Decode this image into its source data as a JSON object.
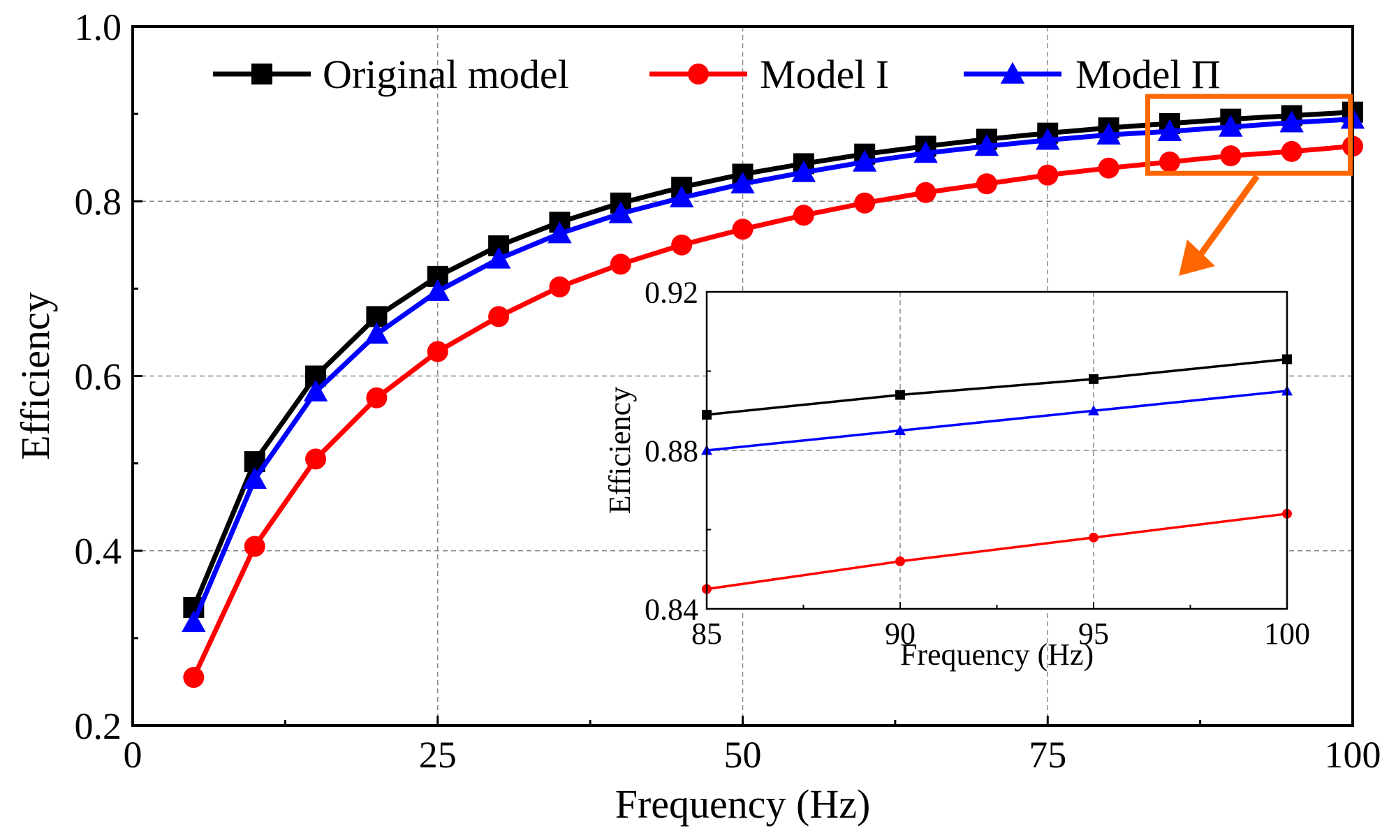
{
  "chart_data": [
    {
      "type": "line",
      "xlabel": "Frequency (Hz)",
      "ylabel": "Efficiency",
      "xlim": [
        0,
        100
      ],
      "ylim": [
        0.2,
        1.0
      ],
      "xticks": [
        0,
        25,
        50,
        75,
        100
      ],
      "xtick_labels": [
        "0",
        "25",
        "50",
        "75",
        "100"
      ],
      "yticks": [
        0.2,
        0.4,
        0.6,
        0.8,
        1.0
      ],
      "ytick_labels": [
        "0.2",
        "0.4",
        "0.6",
        "0.8",
        "1.0"
      ],
      "grid": true,
      "legend_position": "top",
      "x": [
        5,
        10,
        15,
        20,
        25,
        30,
        35,
        40,
        45,
        50,
        55,
        60,
        65,
        70,
        75,
        80,
        85,
        90,
        95,
        100
      ],
      "series": [
        {
          "name": "Original model",
          "color": "#000000",
          "marker": "square",
          "values": [
            0.335,
            0.502,
            0.6,
            0.668,
            0.714,
            0.749,
            0.776,
            0.798,
            0.816,
            0.831,
            0.843,
            0.854,
            0.863,
            0.871,
            0.878,
            0.884,
            0.889,
            0.894,
            0.898,
            0.902
          ]
        },
        {
          "name": "Model I",
          "color": "#ff0000",
          "marker": "circle",
          "values": [
            0.255,
            0.405,
            0.505,
            0.575,
            0.628,
            0.668,
            0.702,
            0.728,
            0.75,
            0.768,
            0.784,
            0.798,
            0.81,
            0.82,
            0.83,
            0.838,
            0.845,
            0.852,
            0.857,
            0.863
          ]
        },
        {
          "name": "Model Π",
          "color": "#0000ff",
          "marker": "triangle",
          "values": [
            0.318,
            0.482,
            0.582,
            0.648,
            0.697,
            0.734,
            0.763,
            0.786,
            0.804,
            0.82,
            0.833,
            0.845,
            0.855,
            0.863,
            0.87,
            0.876,
            0.88,
            0.885,
            0.89,
            0.894
          ]
        }
      ]
    },
    {
      "type": "line",
      "role": "inset",
      "xlabel": "Frequency (Hz)",
      "ylabel": "Efficiency",
      "xlim": [
        85,
        100
      ],
      "ylim": [
        0.84,
        0.92
      ],
      "xticks": [
        85,
        90,
        95,
        100
      ],
      "xtick_labels": [
        "85",
        "90",
        "95",
        "100"
      ],
      "yticks": [
        0.84,
        0.88,
        0.92
      ],
      "ytick_labels": [
        "0.84",
        "0.88",
        "0.92"
      ],
      "grid": true,
      "x": [
        85,
        90,
        95,
        100
      ],
      "series": [
        {
          "name": "Original model",
          "color": "#000000",
          "marker": "square",
          "values": [
            0.889,
            0.894,
            0.898,
            0.903
          ]
        },
        {
          "name": "Model I",
          "color": "#ff0000",
          "marker": "circle",
          "values": [
            0.845,
            0.852,
            0.858,
            0.864
          ]
        },
        {
          "name": "Model Π",
          "color": "#0000ff",
          "marker": "triangle",
          "values": [
            0.88,
            0.885,
            0.89,
            0.895
          ]
        }
      ]
    }
  ],
  "zoom_box_color": "#ff6600"
}
